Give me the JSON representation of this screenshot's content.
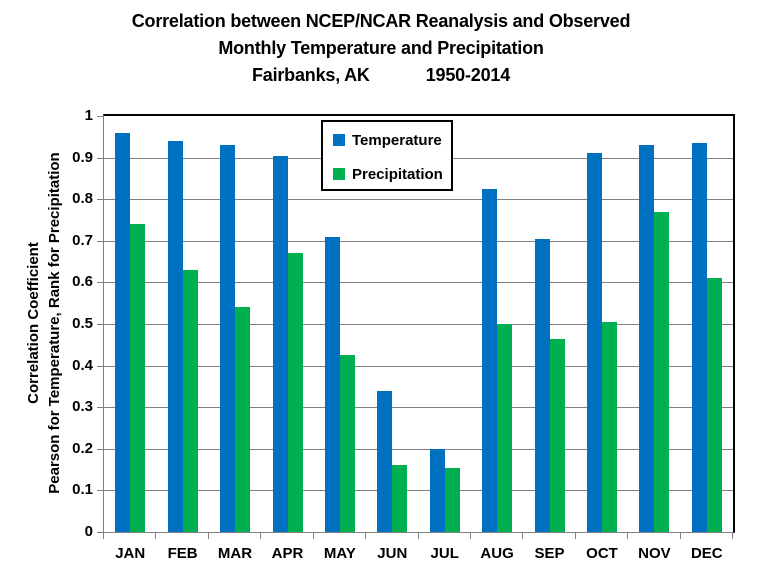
{
  "title": {
    "line1": "Correlation between NCEP/NCAR Reanalysis and Observed",
    "line2": "Monthly Temperature and Precipitation",
    "line3_left": "Fairbanks, AK",
    "line3_right": "1950-2014"
  },
  "y_axis": {
    "label_line1": "Correlation Coefficient",
    "label_line2": "Pearson for Temperature, Rank for Precipitation",
    "tick_labels": [
      "1",
      "0.9",
      "0.8",
      "0.7",
      "0.6",
      "0.5",
      "0.4",
      "0.3",
      "0.2",
      "0.1",
      "0"
    ]
  },
  "legend": {
    "items": [
      {
        "label": "Temperature",
        "color": "#0070C0"
      },
      {
        "label": "Precipitation",
        "color": "#00B050"
      }
    ]
  },
  "colors": {
    "temperature_blue": "#0070C0",
    "precipitation_green": "#00B050",
    "gridline_gray": "#808080",
    "axis_gray": "#808080",
    "plot_border_black": "#000000",
    "background": "#FFFFFF",
    "text": "#000000"
  },
  "chart_data": {
    "type": "bar",
    "title": "Correlation between NCEP/NCAR Reanalysis and Observed Monthly Temperature and Precipitation, Fairbanks, AK, 1950-2014",
    "categories": [
      "JAN",
      "FEB",
      "MAR",
      "APR",
      "MAY",
      "JUN",
      "JUL",
      "AUG",
      "SEP",
      "OCT",
      "NOV",
      "DEC"
    ],
    "series": [
      {
        "name": "Temperature",
        "color": "#0070C0",
        "values": [
          0.96,
          0.94,
          0.93,
          0.905,
          0.71,
          0.34,
          0.2,
          0.825,
          0.705,
          0.91,
          0.93,
          0.935
        ]
      },
      {
        "name": "Precipitation",
        "color": "#00B050",
        "values": [
          0.74,
          0.63,
          0.54,
          0.67,
          0.425,
          0.16,
          0.155,
          0.5,
          0.465,
          0.505,
          0.77,
          0.61
        ]
      }
    ],
    "xlabel": "",
    "ylabel": "Correlation Coefficient / Pearson for Temperature, Rank for Precipitation",
    "ylim": [
      0,
      1
    ],
    "ytick_interval": 0.1,
    "grid": true,
    "legend_position": "inside-top-center"
  }
}
